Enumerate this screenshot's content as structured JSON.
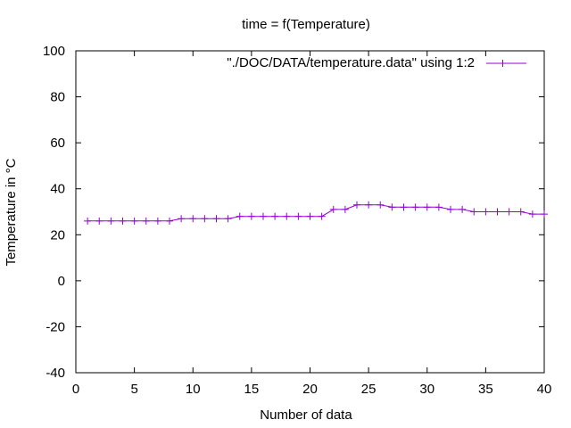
{
  "chart_data": {
    "type": "line",
    "title": "time = f(Temperature)",
    "xlabel": "Number of data",
    "ylabel": "Temperature in °C",
    "xlim": [
      0,
      40
    ],
    "ylim": [
      -40,
      100
    ],
    "x_ticks": [
      0,
      5,
      10,
      15,
      20,
      25,
      30,
      35,
      40
    ],
    "y_ticks": [
      -40,
      -20,
      0,
      20,
      40,
      60,
      80,
      100
    ],
    "grid": false,
    "legend_position": "top-right",
    "series_color": "#9400d3",
    "series": [
      {
        "name": "\"./DOC/DATA/temperature.data\" using 1:2",
        "x": [
          1,
          2,
          3,
          4,
          5,
          6,
          7,
          8,
          9,
          10,
          11,
          12,
          13,
          14,
          15,
          16,
          17,
          18,
          19,
          20,
          21,
          22,
          23,
          24,
          25,
          26,
          27,
          28,
          29,
          30,
          31,
          32,
          33,
          34,
          35,
          36,
          37,
          38,
          39,
          40
        ],
        "y": [
          26,
          26,
          26,
          26,
          26,
          26,
          26,
          26,
          27,
          27,
          27,
          27,
          27,
          28,
          28,
          28,
          28,
          28,
          28,
          28,
          28,
          31,
          31,
          33,
          33,
          33,
          32,
          32,
          32,
          32,
          32,
          31,
          31,
          30,
          30,
          30,
          30,
          30,
          29,
          29
        ]
      }
    ]
  }
}
